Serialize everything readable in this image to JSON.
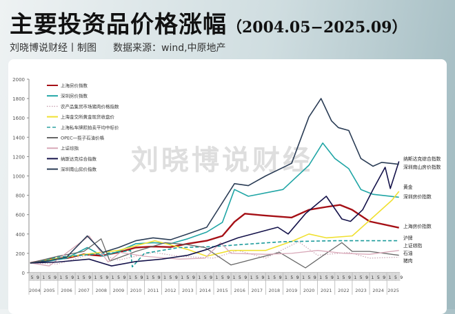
{
  "header": {
    "title": "主要投资品价格涨幅",
    "title_range": "（2004.05−2025.09）",
    "author": "刘晓博说财经丨制图",
    "source": "数据来源：wind,中原地产"
  },
  "watermark": "刘晓博说财经",
  "chart_data": {
    "type": "line",
    "title": "",
    "xlabel": "",
    "ylabel": "",
    "ylim": [
      0,
      2000
    ],
    "yticks": [
      0,
      200,
      400,
      600,
      800,
      1000,
      1200,
      1400,
      1600,
      1800,
      2000
    ],
    "xlim": [
      2004.33,
      2025.75
    ],
    "year_labels": [
      "2004",
      "2005",
      "2006",
      "2007",
      "2008",
      "2009",
      "2010",
      "2011",
      "2012",
      "2013",
      "2014",
      "2015",
      "2016",
      "2017",
      "2018",
      "2019",
      "2020",
      "2021",
      "2022",
      "2023",
      "2024",
      "2025"
    ],
    "month_tick_labels": [
      "1",
      "5",
      "9"
    ],
    "grid": false,
    "legend_placement": "top-left",
    "series": [
      {
        "name": "上海房价指数",
        "end_label": "上海房价指数",
        "color": "#a50f15",
        "style": "solid",
        "width": 2.4,
        "x": [
          2004.4,
          2005.5,
          2006.5,
          2007.5,
          2008.5,
          2009.5,
          2010.5,
          2011.5,
          2012.5,
          2013.5,
          2014.6,
          2015.5,
          2016.2,
          2016.8,
          2018,
          2019.5,
          2020.5,
          2021.5,
          2022.3,
          2023,
          2024,
          2025.7
        ],
        "y": [
          100,
          140,
          150,
          190,
          175,
          210,
          260,
          270,
          265,
          300,
          330,
          380,
          525,
          610,
          590,
          570,
          650,
          680,
          700,
          650,
          530,
          465
        ]
      },
      {
        "name": "深圳房价指数",
        "end_label": "深圳房价指数",
        "color": "#1fa5a5",
        "style": "solid",
        "width": 1.6,
        "x": [
          2004.4,
          2005.5,
          2006.5,
          2007.7,
          2008.6,
          2009.5,
          2010.5,
          2011.5,
          2012.5,
          2013.5,
          2014.6,
          2015.5,
          2016.2,
          2017,
          2019,
          2020.5,
          2021.3,
          2022,
          2022.8,
          2023.5,
          2024.2,
          2025.7
        ],
        "y": [
          100,
          120,
          150,
          260,
          170,
          220,
          300,
          310,
          300,
          350,
          420,
          520,
          860,
          790,
          860,
          1110,
          1340,
          1180,
          1075,
          860,
          810,
          780
        ]
      },
      {
        "name": "农产品集贸市场猪肉价格指数",
        "end_label": "猪肉",
        "color": "#c9a0b0",
        "style": "dotted",
        "width": 1.2,
        "x": [
          2004.4,
          2006,
          2007.5,
          2008.3,
          2009.5,
          2011.5,
          2013,
          2015,
          2016.4,
          2018,
          2019.9,
          2021,
          2022.8,
          2024,
          2025.7
        ],
        "y": [
          100,
          90,
          170,
          200,
          130,
          210,
          170,
          150,
          230,
          150,
          320,
          180,
          210,
          150,
          160
        ]
      },
      {
        "name": "上海金交所黄金现货收盘价",
        "end_label": "黄金",
        "color": "#f0e030",
        "style": "solid",
        "width": 1.6,
        "x": [
          2004.4,
          2006,
          2008,
          2009.5,
          2011.6,
          2013.5,
          2014.6,
          2016,
          2018,
          2019.6,
          2020.5,
          2021.5,
          2023,
          2024,
          2025.3,
          2025.7
        ],
        "y": [
          100,
          150,
          200,
          230,
          330,
          240,
          170,
          230,
          230,
          330,
          400,
          360,
          380,
          540,
          750,
          840
        ]
      },
      {
        "name": "上海私车牌照拍卖平均中标价",
        "end_label": "沪牌",
        "color": "#1a9a9a",
        "style": "dashed",
        "width": 1.6,
        "x": [
          2004.4,
          2006,
          2008,
          2009.5,
          2010.2,
          2010.3,
          2011,
          2013,
          2015,
          2016.5,
          2019,
          2022,
          2025.7
        ],
        "y": [
          100,
          160,
          190,
          210,
          230,
          60,
          200,
          260,
          270,
          290,
          320,
          330,
          330
        ]
      },
      {
        "name": "OPEC一揽子石油价格",
        "end_label": "石油",
        "color": "#666666",
        "style": "solid",
        "width": 1.3,
        "x": [
          2004.4,
          2006,
          2007.5,
          2008.5,
          2009,
          2010.5,
          2012.2,
          2013.5,
          2014.5,
          2016,
          2017.5,
          2018.8,
          2020.3,
          2021.5,
          2022.4,
          2023,
          2024,
          2025.7
        ],
        "y": [
          100,
          170,
          220,
          350,
          120,
          220,
          310,
          290,
          260,
          80,
          150,
          210,
          50,
          200,
          310,
          220,
          220,
          180
        ]
      },
      {
        "name": "上证综指",
        "end_label": "上证综指",
        "color": "#d8a8b8",
        "style": "solid",
        "width": 1.3,
        "x": [
          2004.4,
          2005.5,
          2007.8,
          2008.9,
          2009.6,
          2011,
          2013,
          2014.5,
          2015.4,
          2016,
          2018,
          2019.5,
          2021,
          2022.5,
          2024,
          2025.7
        ],
        "y": [
          100,
          70,
          380,
          110,
          210,
          170,
          140,
          150,
          310,
          200,
          190,
          200,
          230,
          200,
          190,
          230
        ]
      },
      {
        "name": "纳斯达克综合指数",
        "end_label": "纳斯达克综合指数",
        "color": "#14124a",
        "style": "solid",
        "width": 1.6,
        "x": [
          2004.4,
          2006,
          2007.8,
          2009.1,
          2010.5,
          2012,
          2013.5,
          2014.6,
          2016.4,
          2018.7,
          2019.3,
          2020.3,
          2021.5,
          2022.4,
          2022.9,
          2023.6,
          2024.2,
          2024.9,
          2025.2,
          2025.7
        ],
        "y": [
          100,
          110,
          140,
          70,
          115,
          140,
          180,
          240,
          360,
          470,
          400,
          610,
          790,
          555,
          530,
          650,
          860,
          1090,
          870,
          1150
        ]
      },
      {
        "name": "深圳南山房价指数",
        "end_label": "深圳南山房价指数",
        "color": "#2a3c55",
        "style": "solid",
        "width": 1.6,
        "x": [
          2004.4,
          2005.5,
          2006.5,
          2007.7,
          2008.6,
          2009.5,
          2010.5,
          2011.5,
          2012.5,
          2013.5,
          2014.6,
          2016.2,
          2017,
          2018,
          2019.5,
          2020.5,
          2021.2,
          2021.8,
          2022.2,
          2022.8,
          2023.5,
          2024.2,
          2024.7,
          2025.7
        ],
        "y": [
          100,
          125,
          160,
          380,
          210,
          260,
          330,
          360,
          340,
          400,
          470,
          920,
          900,
          1000,
          1130,
          1610,
          1800,
          1570,
          1500,
          1470,
          1180,
          1100,
          1140,
          1120
        ]
      }
    ]
  }
}
